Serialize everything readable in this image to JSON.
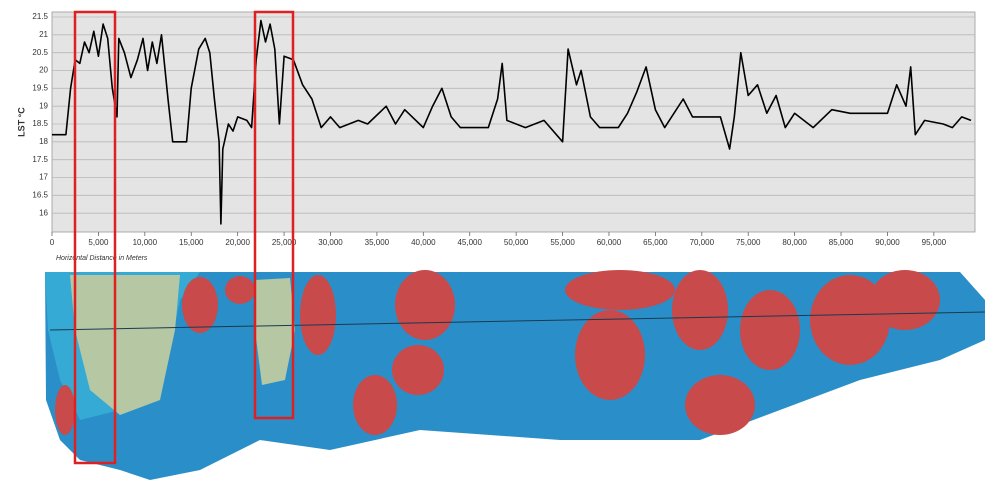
{
  "chart_data": {
    "type": "line",
    "y_label": "LST °C",
    "x_label": "Horizontal Distance in Meters",
    "color": "#000000",
    "grid": true,
    "ylim": [
      15.5,
      21.5
    ],
    "yticks": [
      16,
      16.5,
      17,
      17.5,
      18,
      18.5,
      19,
      19.5,
      20,
      20.5,
      21,
      21.5
    ],
    "xlim": [
      0,
      99000
    ],
    "xticks": [
      0,
      {
        "value": 5000,
        "label": "5,000"
      },
      {
        "value": 10000,
        "label": "10,000"
      },
      {
        "value": 15000,
        "label": "15,000"
      },
      {
        "value": 20000,
        "label": "20,000"
      },
      {
        "value": 25000,
        "label": "25,000"
      },
      {
        "value": 30000,
        "label": "30,000"
      },
      {
        "value": 35000,
        "label": "35,000"
      },
      {
        "value": 40000,
        "label": "40,000"
      },
      {
        "value": 45000,
        "label": "45,000"
      },
      {
        "value": 50000,
        "label": "50,000"
      },
      {
        "value": 55000,
        "label": "55,000"
      },
      {
        "value": 60000,
        "label": "60,000"
      },
      {
        "value": 65000,
        "label": "65,000"
      },
      {
        "value": 70000,
        "label": "70,000"
      },
      {
        "value": 75000,
        "label": "75,000"
      },
      {
        "value": 80000,
        "label": "80,000"
      },
      {
        "value": 85000,
        "label": "85,000"
      },
      {
        "value": 90000,
        "label": "90,000"
      },
      {
        "value": 95000,
        "label": "95,000"
      }
    ],
    "x": [
      0,
      1500,
      2000,
      2500,
      3000,
      3500,
      4000,
      4500,
      5000,
      5500,
      6000,
      6500,
      7000,
      7200,
      7800,
      8500,
      9200,
      9800,
      10300,
      10800,
      11300,
      11800,
      12500,
      13000,
      14500,
      15000,
      15800,
      16500,
      17000,
      17500,
      18000,
      18200,
      18400,
      19000,
      19500,
      20000,
      21000,
      21500,
      22000,
      22500,
      23000,
      23500,
      24000,
      24500,
      25000,
      26000,
      27000,
      28000,
      29000,
      30000,
      31000,
      33000,
      34000,
      36000,
      37000,
      38000,
      40000,
      41000,
      42000,
      43000,
      44000,
      47000,
      48000,
      48500,
      49000,
      51000,
      53000,
      55000,
      55600,
      56500,
      57000,
      58000,
      59000,
      61000,
      62000,
      63000,
      64000,
      65000,
      66000,
      68000,
      69000,
      70000,
      72000,
      73000,
      73500,
      74200,
      75000,
      76000,
      77000,
      78000,
      79000,
      80000,
      82000,
      84000,
      86000,
      88000,
      90000,
      91000,
      92000,
      92500,
      93000,
      94000,
      96000,
      97000,
      98000,
      99000
    ],
    "values": [
      18.2,
      18.2,
      19.5,
      20.3,
      20.2,
      20.8,
      20.5,
      21.1,
      20.4,
      21.3,
      20.9,
      19.5,
      18.7,
      20.9,
      20.5,
      19.8,
      20.3,
      20.9,
      20.0,
      20.8,
      20.2,
      21.0,
      19.2,
      18.0,
      18.0,
      19.5,
      20.6,
      20.9,
      20.5,
      19.2,
      18.0,
      15.7,
      17.8,
      18.5,
      18.3,
      18.7,
      18.6,
      18.4,
      20.3,
      21.4,
      20.8,
      21.3,
      20.6,
      18.5,
      20.4,
      20.3,
      19.6,
      19.2,
      18.4,
      18.7,
      18.4,
      18.6,
      18.5,
      19.0,
      18.5,
      18.9,
      18.4,
      19.0,
      19.5,
      18.7,
      18.4,
      18.4,
      19.2,
      20.2,
      18.6,
      18.4,
      18.6,
      18.0,
      20.6,
      19.6,
      20.0,
      18.7,
      18.4,
      18.4,
      18.8,
      19.4,
      20.1,
      18.9,
      18.4,
      19.2,
      18.7,
      18.7,
      18.7,
      17.8,
      18.7,
      20.5,
      19.3,
      19.6,
      18.8,
      19.3,
      18.4,
      18.8,
      18.4,
      18.9,
      18.8,
      18.8,
      18.8,
      19.6,
      19.0,
      20.1,
      18.2,
      18.6,
      18.5,
      18.4,
      18.7,
      18.6
    ]
  }
}
